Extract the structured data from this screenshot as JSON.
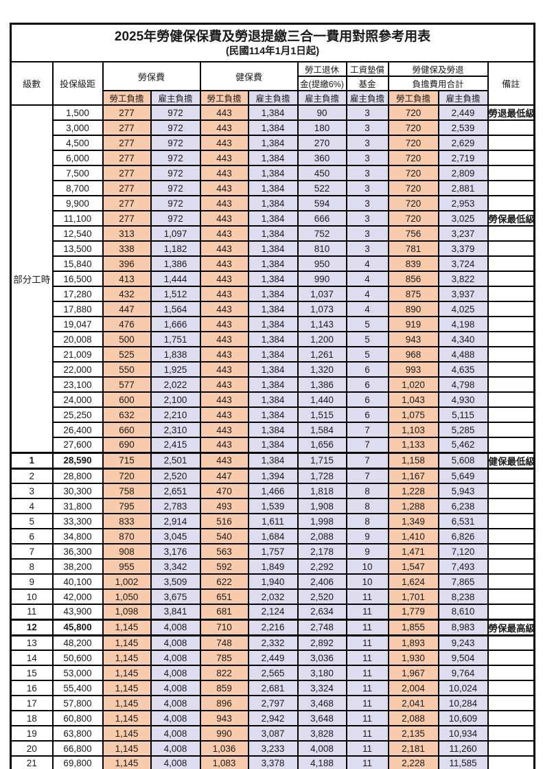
{
  "title": "2025年勞健保保費及勞退提繳三合一費用對照參考用表",
  "subtitle": "(民國114年1月1日起)",
  "colors": {
    "employee_column_bg": "#F8CBAD",
    "employer_column_bg": "#DEDDF0",
    "highlight_text": "#FF5050",
    "note_text": "#FF4A4A",
    "border": "#000000"
  },
  "header": {
    "level": "級數",
    "bracket": "投保級距",
    "labor_insurance": "勞保費",
    "health_insurance": "健保費",
    "pension_line1": "勞工退休",
    "pension_line2": "金(提繳6%)",
    "wage_fund_line1": "工資墊償",
    "wage_fund_line2": "基金",
    "total_line1": "勞健保及勞退",
    "total_line2": "負擔費用合計",
    "employee": "勞工負擔",
    "employer": "雇主負擔",
    "note": "備註"
  },
  "part_time_label": "部分工時",
  "part_time_rowspan": 23,
  "column_types": [
    "emp",
    "er",
    "emp",
    "er",
    "er",
    "er",
    "emp",
    "er"
  ],
  "column_keys": [
    "labor-employee",
    "labor-employer",
    "health-employee",
    "health-employer",
    "pension-employer",
    "wage-fund-employer",
    "total-employee",
    "total-employer"
  ],
  "rows": [
    {
      "level": "",
      "bracket": "1,500",
      "values": [
        "277",
        "972",
        "443",
        "1,384",
        "90",
        "3",
        "720",
        "2,449"
      ],
      "note": "勞退最低級距",
      "highlight": true,
      "bold": false,
      "thick": false
    },
    {
      "level": "",
      "bracket": "3,000",
      "values": [
        "277",
        "972",
        "443",
        "1,384",
        "180",
        "3",
        "720",
        "2,539"
      ],
      "note": "",
      "highlight": false,
      "bold": false,
      "thick": false
    },
    {
      "level": "",
      "bracket": "4,500",
      "values": [
        "277",
        "972",
        "443",
        "1,384",
        "270",
        "3",
        "720",
        "2,629"
      ],
      "note": "",
      "highlight": false,
      "bold": false,
      "thick": false
    },
    {
      "level": "",
      "bracket": "6,000",
      "values": [
        "277",
        "972",
        "443",
        "1,384",
        "360",
        "3",
        "720",
        "2,719"
      ],
      "note": "",
      "highlight": false,
      "bold": false,
      "thick": false
    },
    {
      "level": "",
      "bracket": "7,500",
      "values": [
        "277",
        "972",
        "443",
        "1,384",
        "450",
        "3",
        "720",
        "2,809"
      ],
      "note": "",
      "highlight": false,
      "bold": false,
      "thick": false
    },
    {
      "level": "",
      "bracket": "8,700",
      "values": [
        "277",
        "972",
        "443",
        "1,384",
        "522",
        "3",
        "720",
        "2,881"
      ],
      "note": "",
      "highlight": false,
      "bold": false,
      "thick": false
    },
    {
      "level": "",
      "bracket": "9,900",
      "values": [
        "277",
        "972",
        "443",
        "1,384",
        "594",
        "3",
        "720",
        "2,953"
      ],
      "note": "",
      "highlight": false,
      "bold": false,
      "thick": false
    },
    {
      "level": "",
      "bracket": "11,100",
      "values": [
        "277",
        "972",
        "443",
        "1,384",
        "666",
        "3",
        "720",
        "3,025"
      ],
      "note": "勞保最低級距",
      "highlight": true,
      "bold": false,
      "thick": false
    },
    {
      "level": "",
      "bracket": "12,540",
      "values": [
        "313",
        "1,097",
        "443",
        "1,384",
        "752",
        "3",
        "756",
        "3,237"
      ],
      "note": "",
      "highlight": false,
      "bold": false,
      "thick": false
    },
    {
      "level": "",
      "bracket": "13,500",
      "values": [
        "338",
        "1,182",
        "443",
        "1,384",
        "810",
        "3",
        "781",
        "3,379"
      ],
      "note": "",
      "highlight": false,
      "bold": false,
      "thick": false
    },
    {
      "level": "",
      "bracket": "15,840",
      "values": [
        "396",
        "1,386",
        "443",
        "1,384",
        "950",
        "4",
        "839",
        "3,724"
      ],
      "note": "",
      "highlight": false,
      "bold": false,
      "thick": false
    },
    {
      "level": "",
      "bracket": "16,500",
      "values": [
        "413",
        "1,444",
        "443",
        "1,384",
        "990",
        "4",
        "856",
        "3,822"
      ],
      "note": "",
      "highlight": false,
      "bold": false,
      "thick": false
    },
    {
      "level": "",
      "bracket": "17,280",
      "values": [
        "432",
        "1,512",
        "443",
        "1,384",
        "1,037",
        "4",
        "875",
        "3,937"
      ],
      "note": "",
      "highlight": false,
      "bold": false,
      "thick": false
    },
    {
      "level": "",
      "bracket": "17,880",
      "values": [
        "447",
        "1,564",
        "443",
        "1,384",
        "1,073",
        "4",
        "890",
        "4,025"
      ],
      "note": "",
      "highlight": false,
      "bold": false,
      "thick": false
    },
    {
      "level": "",
      "bracket": "19,047",
      "values": [
        "476",
        "1,666",
        "443",
        "1,384",
        "1,143",
        "5",
        "919",
        "4,198"
      ],
      "note": "",
      "highlight": false,
      "bold": false,
      "thick": false
    },
    {
      "level": "",
      "bracket": "20,008",
      "values": [
        "500",
        "1,751",
        "443",
        "1,384",
        "1,200",
        "5",
        "943",
        "4,340"
      ],
      "note": "",
      "highlight": false,
      "bold": false,
      "thick": false
    },
    {
      "level": "",
      "bracket": "21,009",
      "values": [
        "525",
        "1,838",
        "443",
        "1,384",
        "1,261",
        "5",
        "968",
        "4,488"
      ],
      "note": "",
      "highlight": false,
      "bold": false,
      "thick": false
    },
    {
      "level": "",
      "bracket": "22,000",
      "values": [
        "550",
        "1,925",
        "443",
        "1,384",
        "1,320",
        "6",
        "993",
        "4,635"
      ],
      "note": "",
      "highlight": false,
      "bold": false,
      "thick": false
    },
    {
      "level": "",
      "bracket": "23,100",
      "values": [
        "577",
        "2,022",
        "443",
        "1,384",
        "1,386",
        "6",
        "1,020",
        "4,798"
      ],
      "note": "",
      "highlight": false,
      "bold": false,
      "thick": false
    },
    {
      "level": "",
      "bracket": "24,000",
      "values": [
        "600",
        "2,100",
        "443",
        "1,384",
        "1,440",
        "6",
        "1,043",
        "4,930"
      ],
      "note": "",
      "highlight": false,
      "bold": false,
      "thick": false
    },
    {
      "level": "",
      "bracket": "25,250",
      "values": [
        "632",
        "2,210",
        "443",
        "1,384",
        "1,515",
        "6",
        "1,075",
        "5,115"
      ],
      "note": "",
      "highlight": false,
      "bold": false,
      "thick": false
    },
    {
      "level": "",
      "bracket": "26,400",
      "values": [
        "660",
        "2,310",
        "443",
        "1,384",
        "1,584",
        "7",
        "1,103",
        "5,285"
      ],
      "note": "",
      "highlight": false,
      "bold": false,
      "thick": false
    },
    {
      "level": "",
      "bracket": "27,600",
      "values": [
        "690",
        "2,415",
        "443",
        "1,384",
        "1,656",
        "7",
        "1,133",
        "5,462"
      ],
      "note": "",
      "highlight": false,
      "bold": false,
      "thick": false
    },
    {
      "level": "1",
      "bracket": "28,590",
      "values": [
        "715",
        "2,501",
        "443",
        "1,384",
        "1,715",
        "7",
        "1,158",
        "5,608"
      ],
      "note": "健保最低級距",
      "highlight": true,
      "bold": true,
      "thick": true
    },
    {
      "level": "2",
      "bracket": "28,800",
      "values": [
        "720",
        "2,520",
        "447",
        "1,394",
        "1,728",
        "7",
        "1,167",
        "5,649"
      ],
      "note": "",
      "highlight": false,
      "bold": false,
      "thick": false
    },
    {
      "level": "3",
      "bracket": "30,300",
      "values": [
        "758",
        "2,651",
        "470",
        "1,466",
        "1,818",
        "8",
        "1,228",
        "5,943"
      ],
      "note": "",
      "highlight": false,
      "bold": false,
      "thick": false
    },
    {
      "level": "4",
      "bracket": "31,800",
      "values": [
        "795",
        "2,783",
        "493",
        "1,539",
        "1,908",
        "8",
        "1,288",
        "6,238"
      ],
      "note": "",
      "highlight": false,
      "bold": false,
      "thick": false
    },
    {
      "level": "5",
      "bracket": "33,300",
      "values": [
        "833",
        "2,914",
        "516",
        "1,611",
        "1,998",
        "8",
        "1,349",
        "6,531"
      ],
      "note": "",
      "highlight": false,
      "bold": false,
      "thick": false
    },
    {
      "level": "6",
      "bracket": "34,800",
      "values": [
        "870",
        "3,045",
        "540",
        "1,684",
        "2,088",
        "9",
        "1,410",
        "6,826"
      ],
      "note": "",
      "highlight": false,
      "bold": false,
      "thick": false
    },
    {
      "level": "7",
      "bracket": "36,300",
      "values": [
        "908",
        "3,176",
        "563",
        "1,757",
        "2,178",
        "9",
        "1,471",
        "7,120"
      ],
      "note": "",
      "highlight": false,
      "bold": false,
      "thick": false
    },
    {
      "level": "8",
      "bracket": "38,200",
      "values": [
        "955",
        "3,342",
        "592",
        "1,849",
        "2,292",
        "10",
        "1,547",
        "7,493"
      ],
      "note": "",
      "highlight": false,
      "bold": false,
      "thick": false
    },
    {
      "level": "9",
      "bracket": "40,100",
      "values": [
        "1,002",
        "3,509",
        "622",
        "1,940",
        "2,406",
        "10",
        "1,624",
        "7,865"
      ],
      "note": "",
      "highlight": false,
      "bold": false,
      "thick": false
    },
    {
      "level": "10",
      "bracket": "42,000",
      "values": [
        "1,050",
        "3,675",
        "651",
        "2,032",
        "2,520",
        "11",
        "1,701",
        "8,238"
      ],
      "note": "",
      "highlight": false,
      "bold": false,
      "thick": false
    },
    {
      "level": "11",
      "bracket": "43,900",
      "values": [
        "1,098",
        "3,841",
        "681",
        "2,124",
        "2,634",
        "11",
        "1,779",
        "8,610"
      ],
      "note": "",
      "highlight": false,
      "bold": false,
      "thick": false
    },
    {
      "level": "12",
      "bracket": "45,800",
      "values": [
        "1,145",
        "4,008",
        "710",
        "2,216",
        "2,748",
        "11",
        "1,855",
        "8,983"
      ],
      "note": "勞保最高級距",
      "highlight": true,
      "bold": true,
      "thick": true
    },
    {
      "level": "13",
      "bracket": "48,200",
      "values": [
        "1,145",
        "4,008",
        "748",
        "2,332",
        "2,892",
        "11",
        "1,893",
        "9,243"
      ],
      "note": "",
      "highlight": false,
      "bold": false,
      "thick": false
    },
    {
      "level": "14",
      "bracket": "50,600",
      "values": [
        "1,145",
        "4,008",
        "785",
        "2,449",
        "3,036",
        "11",
        "1,930",
        "9,504"
      ],
      "note": "",
      "highlight": false,
      "bold": false,
      "thick": false
    },
    {
      "level": "15",
      "bracket": "53,000",
      "values": [
        "1,145",
        "4,008",
        "822",
        "2,565",
        "3,180",
        "11",
        "1,967",
        "9,764"
      ],
      "note": "",
      "highlight": false,
      "bold": false,
      "thick": false
    },
    {
      "level": "16",
      "bracket": "55,400",
      "values": [
        "1,145",
        "4,008",
        "859",
        "2,681",
        "3,324",
        "11",
        "2,004",
        "10,024"
      ],
      "note": "",
      "highlight": false,
      "bold": false,
      "thick": false
    },
    {
      "level": "17",
      "bracket": "57,800",
      "values": [
        "1,145",
        "4,008",
        "896",
        "2,797",
        "3,468",
        "11",
        "2,041",
        "10,284"
      ],
      "note": "",
      "highlight": false,
      "bold": false,
      "thick": false
    },
    {
      "level": "18",
      "bracket": "60,800",
      "values": [
        "1,145",
        "4,008",
        "943",
        "2,942",
        "3,648",
        "11",
        "2,088",
        "10,609"
      ],
      "note": "",
      "highlight": false,
      "bold": false,
      "thick": false
    },
    {
      "level": "19",
      "bracket": "63,800",
      "values": [
        "1,145",
        "4,008",
        "990",
        "3,087",
        "3,828",
        "11",
        "2,135",
        "10,934"
      ],
      "note": "",
      "highlight": false,
      "bold": false,
      "thick": false
    },
    {
      "level": "20",
      "bracket": "66,800",
      "values": [
        "1,145",
        "4,008",
        "1,036",
        "3,233",
        "4,008",
        "11",
        "2,181",
        "11,260"
      ],
      "note": "",
      "highlight": false,
      "bold": false,
      "thick": false
    },
    {
      "level": "21",
      "bracket": "69,800",
      "values": [
        "1,145",
        "4,008",
        "1,083",
        "3,378",
        "4,188",
        "11",
        "2,228",
        "11,585"
      ],
      "note": "",
      "highlight": false,
      "bold": false,
      "thick": false
    }
  ]
}
